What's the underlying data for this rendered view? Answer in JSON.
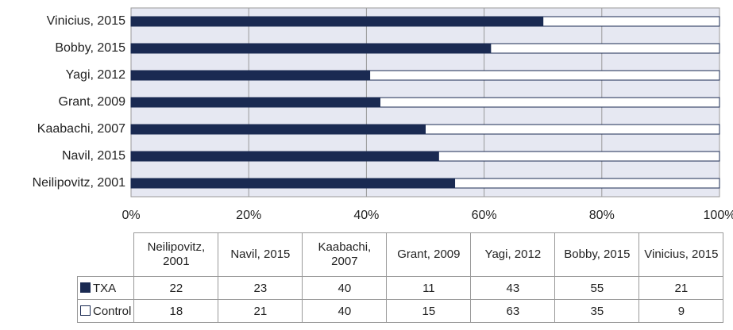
{
  "chart_data": {
    "type": "bar",
    "orientation": "horizontal",
    "stacking": "percent",
    "categories": [
      "Neilipovitz, 2001",
      "Navil, 2015",
      "Kaabachi, 2007",
      "Grant, 2009",
      "Yagi, 2012",
      "Bobby, 2015",
      "Vinicius, 2015"
    ],
    "series": [
      {
        "name": "TXA",
        "color": "#1a2a52",
        "values": [
          22,
          23,
          40,
          11,
          43,
          55,
          21
        ]
      },
      {
        "name": "Control",
        "color": "#ffffff",
        "values": [
          18,
          21,
          40,
          15,
          63,
          35,
          9
        ]
      }
    ],
    "xlim": [
      0,
      100
    ],
    "xticks": [
      {
        "value": 0,
        "label": "0%"
      },
      {
        "value": 20,
        "label": "20%"
      },
      {
        "value": 40,
        "label": "40%"
      },
      {
        "value": 60,
        "label": "60%"
      },
      {
        "value": 80,
        "label": "80%"
      },
      {
        "value": 100,
        "label": "100%"
      }
    ],
    "grid": true,
    "data_table": true
  }
}
